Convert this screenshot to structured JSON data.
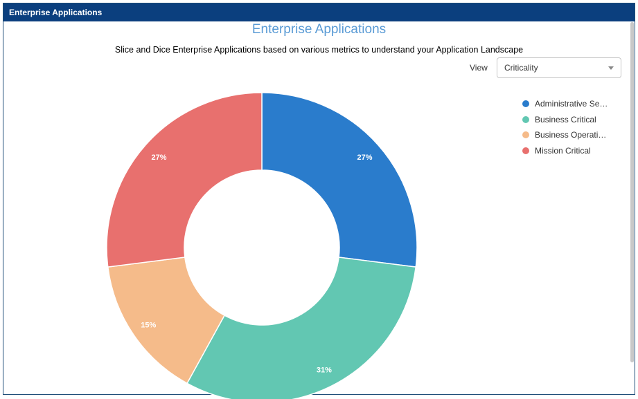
{
  "panel": {
    "header_title": "Enterprise Applications"
  },
  "chart_data": {
    "type": "pie",
    "variant": "donut",
    "title": "Enterprise Applications",
    "subtitle": "Slice and Dice Enterprise Applications based on various metrics to understand your Application Landscape",
    "legend_position": "right",
    "categories": [
      "Administrative Ser…",
      "Business Critical",
      "Business Operatio…",
      "Mission Critical"
    ],
    "values": [
      27,
      31,
      15,
      27
    ],
    "labels": [
      "27%",
      "31%",
      "15%",
      "27%"
    ],
    "colors": [
      "#2a7ccc",
      "#62c7b2",
      "#f5bb8a",
      "#e8706e"
    ]
  },
  "view": {
    "label": "View",
    "selected": "Criticality"
  }
}
